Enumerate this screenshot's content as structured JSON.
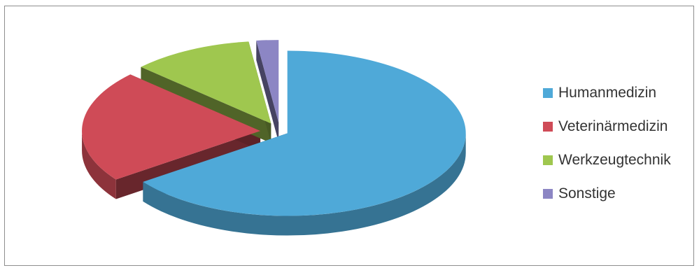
{
  "chart_data": {
    "type": "pie",
    "style": "3d-exploded",
    "categories": [
      "Humanmedizin",
      "Veterinärmedizin",
      "Werkzeugtechnik",
      "Sonstige"
    ],
    "values": [
      65,
      22,
      11,
      2
    ],
    "legend_position": "right",
    "colors": [
      "#4fa9d8",
      "#cf4b57",
      "#9fc74f",
      "#8c86c4"
    ]
  }
}
